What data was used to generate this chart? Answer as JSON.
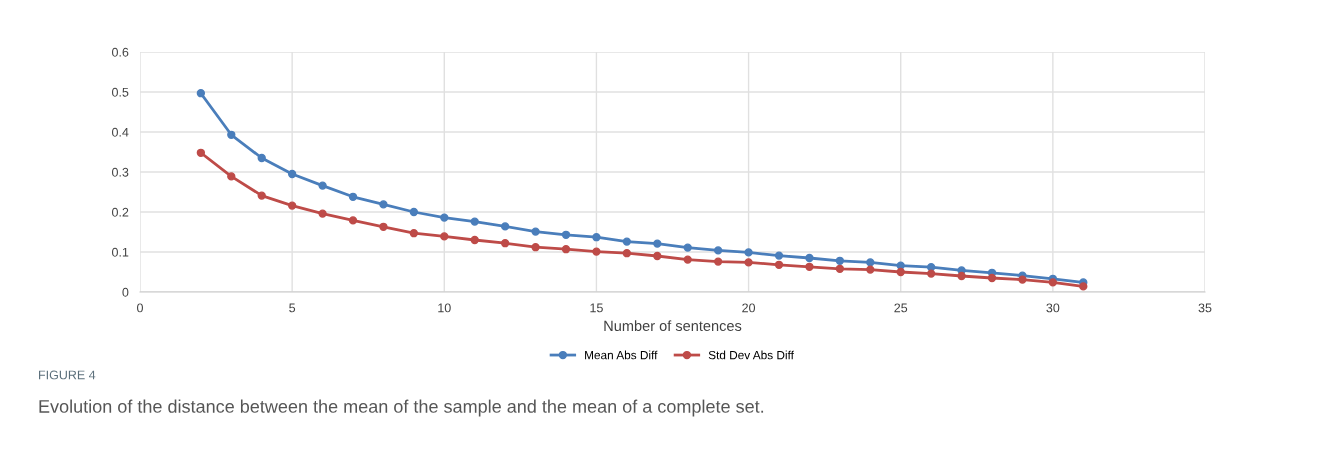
{
  "chart_data": {
    "type": "line",
    "xlabel": "Number of sentences",
    "x": [
      2,
      3,
      4,
      5,
      6,
      7,
      8,
      9,
      10,
      11,
      12,
      13,
      14,
      15,
      16,
      17,
      18,
      19,
      20,
      21,
      22,
      23,
      24,
      25,
      26,
      27,
      28,
      29,
      30,
      31
    ],
    "series": [
      {
        "name": "Mean Abs Diff",
        "color": "#4a7ebb",
        "values": [
          0.497,
          0.393,
          0.335,
          0.295,
          0.266,
          0.238,
          0.219,
          0.2,
          0.186,
          0.176,
          0.164,
          0.151,
          0.143,
          0.137,
          0.126,
          0.121,
          0.111,
          0.104,
          0.099,
          0.091,
          0.085,
          0.078,
          0.074,
          0.066,
          0.062,
          0.054,
          0.048,
          0.041,
          0.033,
          0.024
        ]
      },
      {
        "name": "Std Dev Abs Diff",
        "color": "#be4b48",
        "values": [
          0.348,
          0.289,
          0.241,
          0.216,
          0.196,
          0.179,
          0.163,
          0.147,
          0.139,
          0.13,
          0.122,
          0.112,
          0.107,
          0.101,
          0.097,
          0.09,
          0.081,
          0.076,
          0.074,
          0.068,
          0.063,
          0.058,
          0.056,
          0.05,
          0.046,
          0.04,
          0.035,
          0.031,
          0.024,
          0.014
        ]
      }
    ],
    "xlim": [
      0,
      35
    ],
    "xticks": [
      0,
      5,
      10,
      15,
      20,
      25,
      30,
      35
    ],
    "ylim": [
      0,
      0.6
    ],
    "yticks": [
      0,
      0.1,
      0.2,
      0.3,
      0.4,
      0.5,
      0.6
    ],
    "grid": true,
    "legend": "bottom",
    "marker": "circle",
    "line_style": "solid",
    "annotations": [
      "FIGURE 4",
      "Evolution of the distance between the mean of the sample and the mean of a complete set."
    ]
  }
}
